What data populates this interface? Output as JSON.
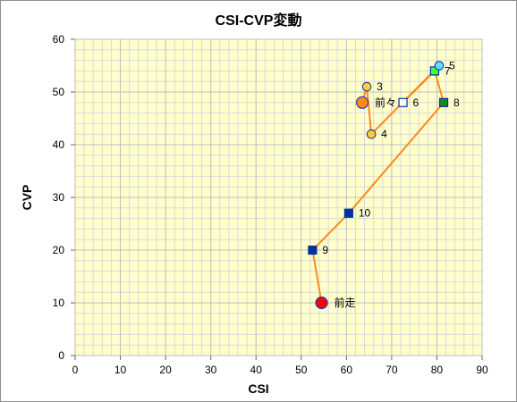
{
  "chart_data": {
    "type": "scatter",
    "title": "CSI-CVP変動",
    "xlabel": "CSI",
    "ylabel": "CVP",
    "xlim": [
      0,
      90
    ],
    "ylim": [
      0,
      60
    ],
    "xticks": [
      0,
      10,
      20,
      30,
      40,
      50,
      60,
      70,
      80,
      90
    ],
    "yticks": [
      0,
      10,
      20,
      30,
      40,
      50,
      60
    ],
    "grid": true,
    "legend": "none",
    "colors": {
      "plot_background": "#ffffcc",
      "line": "#ff8a1c",
      "grid_major": "#bdbdbd",
      "grid_minor": "#d9d9d9"
    },
    "points": [
      {
        "label": "前走",
        "x": 54.5,
        "y": 10,
        "marker": "circle-large",
        "fill": "#ff0000",
        "stroke": "#1f3fbf"
      },
      {
        "label": "9",
        "x": 52.5,
        "y": 20,
        "marker": "square",
        "fill": "#003399",
        "stroke": "#003399"
      },
      {
        "label": "10",
        "x": 60.5,
        "y": 27,
        "marker": "square",
        "fill": "#003399",
        "stroke": "#003399"
      },
      {
        "label": "8",
        "x": 81.5,
        "y": 48,
        "marker": "square",
        "fill": "#1b8a1b",
        "stroke": "#003399"
      },
      {
        "label": "7",
        "x": 79.5,
        "y": 54,
        "marker": "square",
        "fill": "#44ff44",
        "stroke": "#003399"
      },
      {
        "label": "6",
        "x": 72.5,
        "y": 48,
        "marker": "square-open",
        "fill": "#ffffff",
        "stroke": "#003399"
      },
      {
        "label": "5",
        "x": 80.5,
        "y": 55,
        "marker": "circle",
        "fill": "#66ddff",
        "stroke": "#003399"
      },
      {
        "label": "4",
        "x": 65.5,
        "y": 42,
        "marker": "circle",
        "fill": "#ffcc33",
        "stroke": "#003399"
      },
      {
        "label": "3",
        "x": 64.5,
        "y": 51,
        "marker": "circle",
        "fill": "#ffcc33",
        "stroke": "#003399"
      },
      {
        "label": "前々",
        "x": 63.5,
        "y": 48,
        "marker": "circle-large",
        "fill": "#ff8a1c",
        "stroke": "#1f3fbf"
      }
    ]
  }
}
